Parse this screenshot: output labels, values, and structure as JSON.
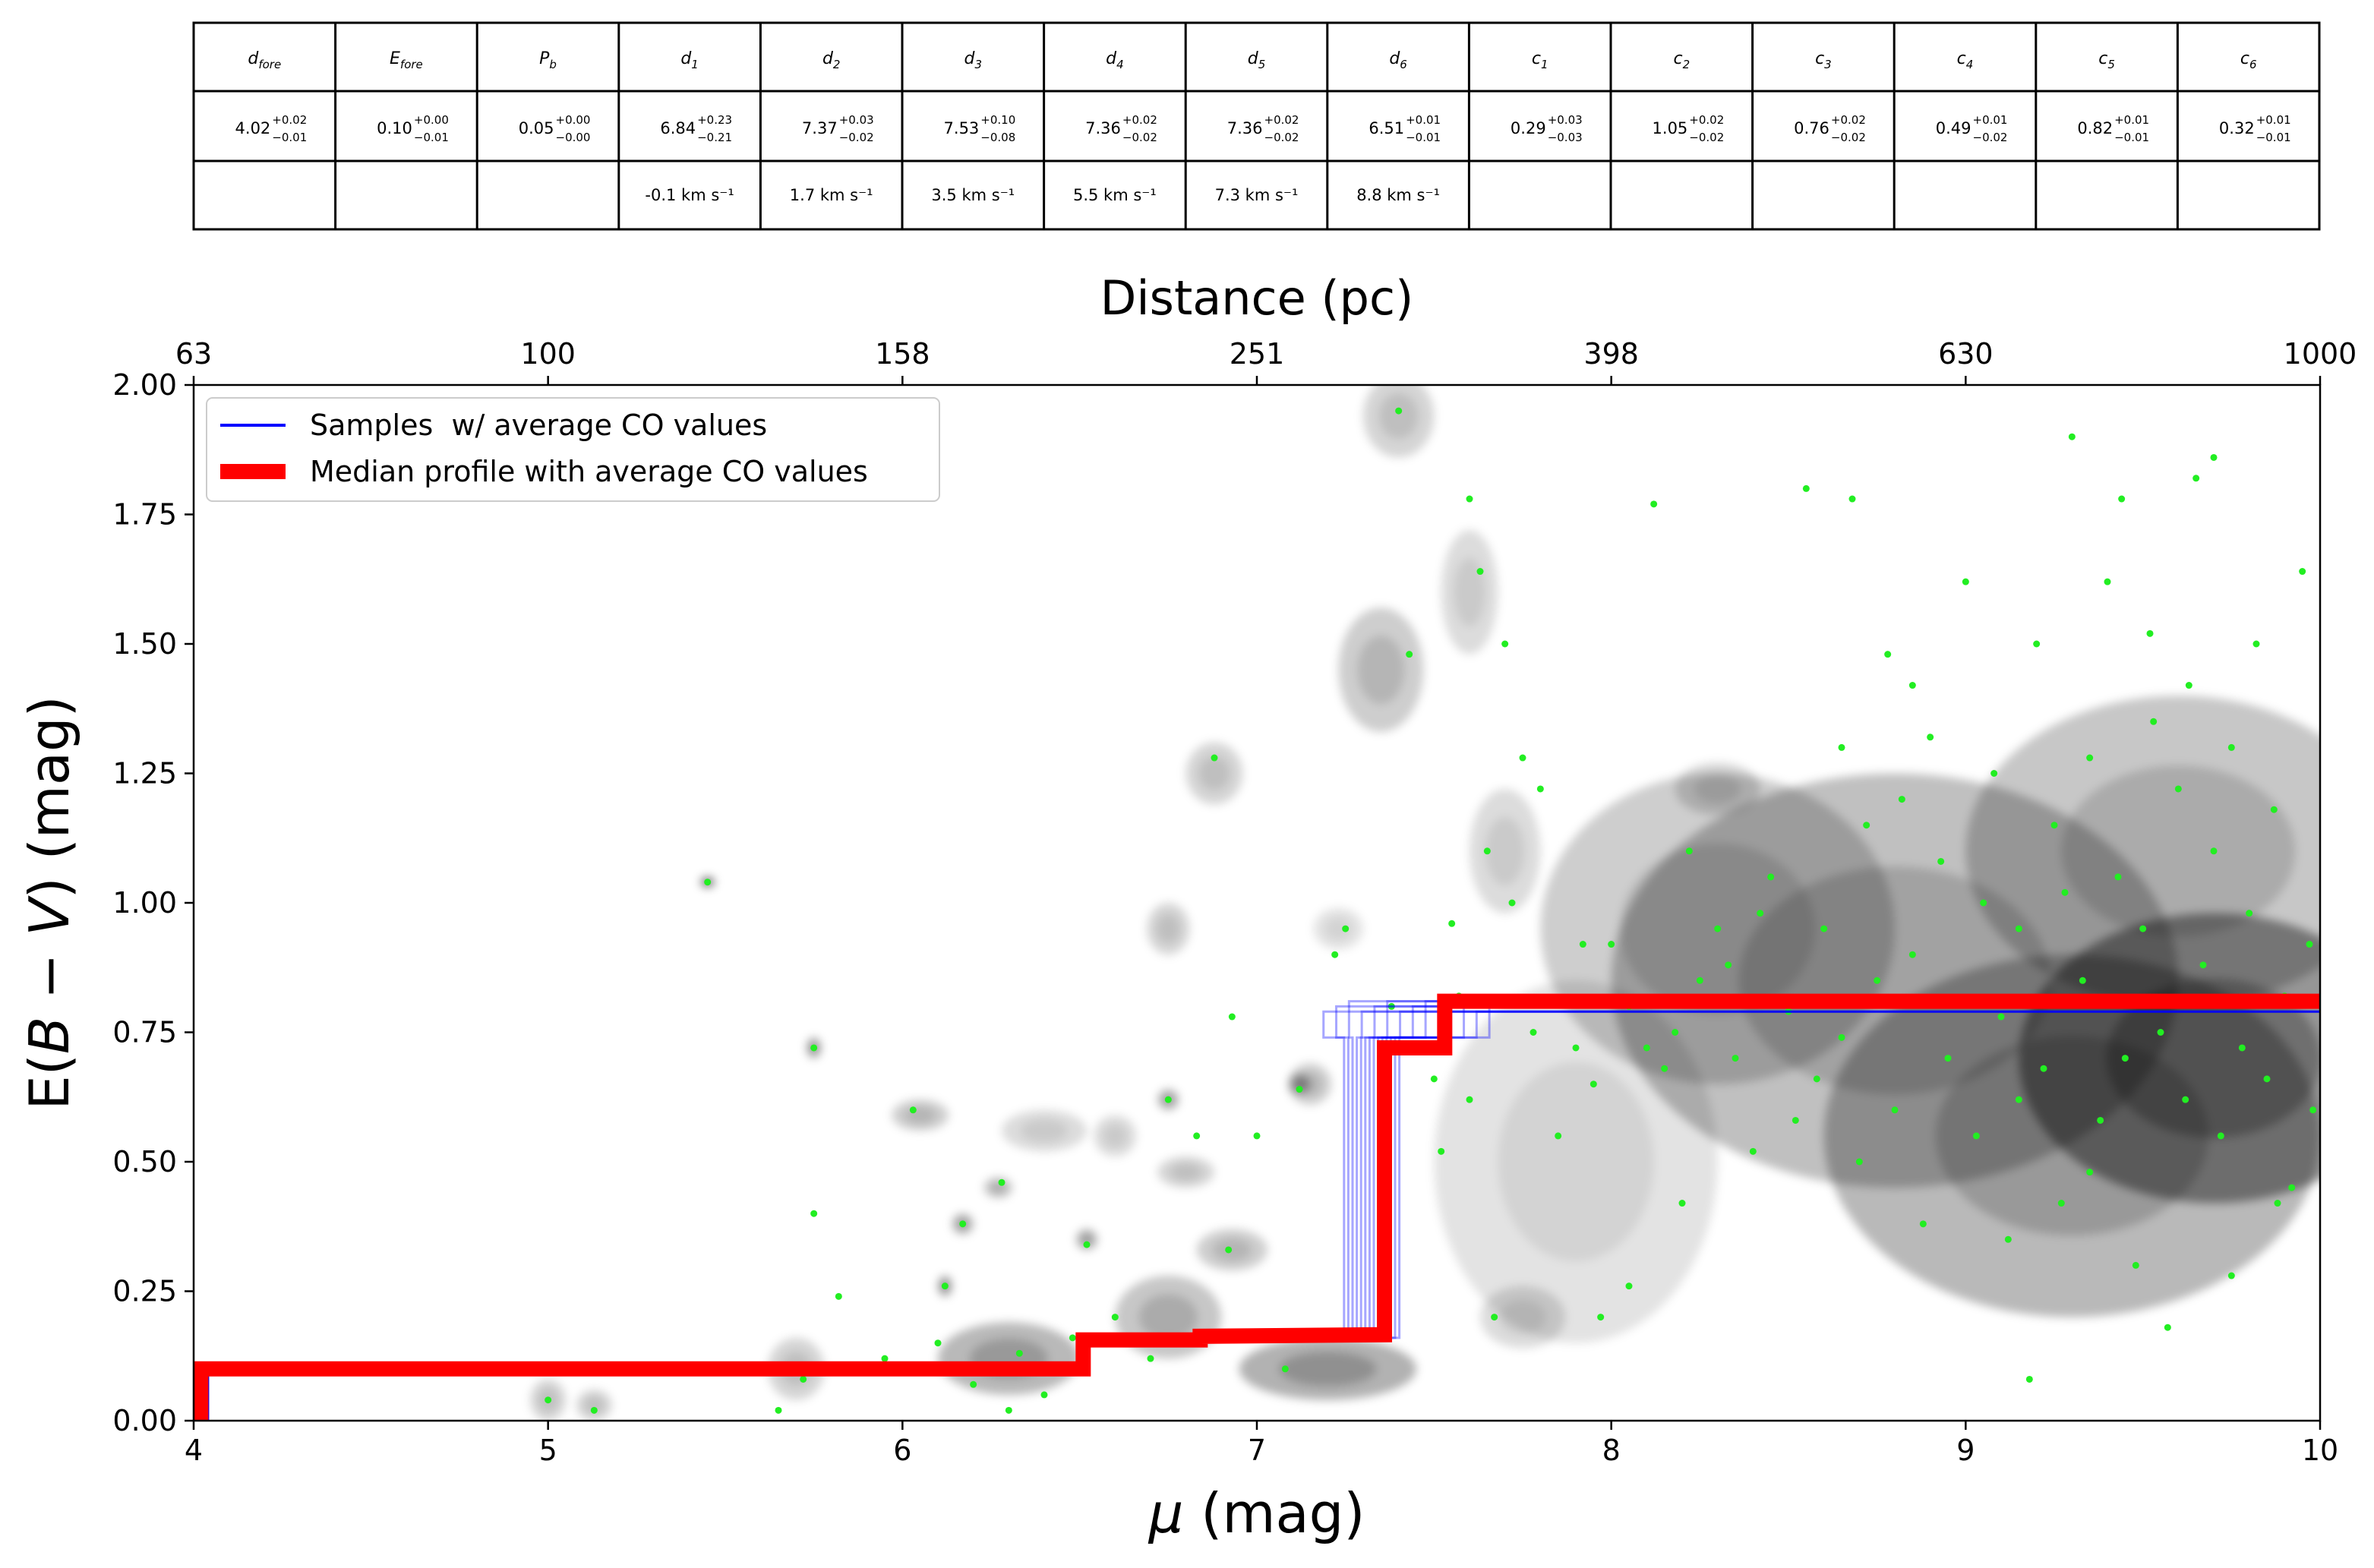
{
  "table": {
    "headers": [
      "d_fore",
      "E_fore",
      "P_b",
      "d_1",
      "d_2",
      "d_3",
      "d_4",
      "d_5",
      "d_6",
      "c_1",
      "c_2",
      "c_3",
      "c_4",
      "c_5",
      "c_6"
    ],
    "header_cells": [
      {
        "base": "d",
        "sub": "fore"
      },
      {
        "base": "E",
        "sub": "fore"
      },
      {
        "base": "P",
        "sub": "b"
      },
      {
        "base": "d",
        "sub": "1"
      },
      {
        "base": "d",
        "sub": "2"
      },
      {
        "base": "d",
        "sub": "3"
      },
      {
        "base": "d",
        "sub": "4"
      },
      {
        "base": "d",
        "sub": "5"
      },
      {
        "base": "d",
        "sub": "6"
      },
      {
        "base": "c",
        "sub": "1"
      },
      {
        "base": "c",
        "sub": "2"
      },
      {
        "base": "c",
        "sub": "3"
      },
      {
        "base": "c",
        "sub": "4"
      },
      {
        "base": "c",
        "sub": "5"
      },
      {
        "base": "c",
        "sub": "6"
      }
    ],
    "values": [
      {
        "v": "4.02",
        "plus": "+0.02",
        "minus": "−0.01"
      },
      {
        "v": "0.10",
        "plus": "+0.00",
        "minus": "−0.01"
      },
      {
        "v": "0.05",
        "plus": "+0.00",
        "minus": "−0.00"
      },
      {
        "v": "6.84",
        "plus": "+0.23",
        "minus": "−0.21"
      },
      {
        "v": "7.37",
        "plus": "+0.03",
        "minus": "−0.02"
      },
      {
        "v": "7.53",
        "plus": "+0.10",
        "minus": "−0.08"
      },
      {
        "v": "7.36",
        "plus": "+0.02",
        "minus": "−0.02"
      },
      {
        "v": "7.36",
        "plus": "+0.02",
        "minus": "−0.02"
      },
      {
        "v": "6.51",
        "plus": "+0.01",
        "minus": "−0.01"
      },
      {
        "v": "0.29",
        "plus": "+0.03",
        "minus": "−0.03"
      },
      {
        "v": "1.05",
        "plus": "+0.02",
        "minus": "−0.02"
      },
      {
        "v": "0.76",
        "plus": "+0.02",
        "minus": "−0.02"
      },
      {
        "v": "0.49",
        "plus": "+0.01",
        "minus": "−0.02"
      },
      {
        "v": "0.82",
        "plus": "+0.01",
        "minus": "−0.01"
      },
      {
        "v": "0.32",
        "plus": "+0.01",
        "minus": "−0.01"
      }
    ],
    "velocities": [
      "",
      "",
      "",
      "-0.1 km s⁻¹",
      "1.7 km s⁻¹",
      "3.5 km s⁻¹",
      "5.5 km s⁻¹",
      "7.3 km s⁻¹",
      "8.8 km s⁻¹",
      "",
      "",
      "",
      "",
      "",
      ""
    ]
  },
  "chart_data": {
    "type": "line",
    "xlabel": "μ (mag)",
    "ylabel": "E(B − V) (mag)",
    "top_axis_label": "Distance (pc)",
    "xlim": [
      4,
      10
    ],
    "ylim": [
      0,
      2
    ],
    "x_ticks": [
      4,
      5,
      6,
      7,
      8,
      9,
      10
    ],
    "y_ticks": [
      "0.00",
      "0.25",
      "0.50",
      "0.75",
      "1.00",
      "1.25",
      "1.50",
      "1.75",
      "2.00"
    ],
    "top_ticks": [
      {
        "mu": 4,
        "label": "63"
      },
      {
        "mu": 5,
        "label": "100"
      },
      {
        "mu": 6,
        "label": "158"
      },
      {
        "mu": 7,
        "label": "251"
      },
      {
        "mu": 8,
        "label": "398"
      },
      {
        "mu": 9,
        "label": "630"
      },
      {
        "mu": 10,
        "label": "1000"
      }
    ],
    "legend": {
      "placement": "upper-left",
      "entries": [
        {
          "label": "Samples  w/ average CO values",
          "color": "#0000ff"
        },
        {
          "label": "Median profile with average CO values",
          "color": "#ff0000"
        }
      ]
    },
    "colors": {
      "median": "#ff0000",
      "samples": "#0000ff",
      "stars": "#22ee22",
      "density": "grayscale"
    },
    "series": [
      {
        "name": "Median profile with average CO values",
        "x": [
          4.0,
          4.02,
          4.02,
          6.51,
          6.51,
          6.84,
          6.84,
          7.36,
          7.36,
          7.53,
          7.53,
          10.0
        ],
        "y": [
          0.0,
          0.0,
          0.1,
          0.1,
          0.156,
          0.156,
          0.163,
          0.166,
          0.72,
          0.72,
          0.81,
          0.81
        ]
      },
      {
        "name": "Samples  w/ average CO values",
        "note_visible": false,
        "x": [
          4.04,
          4.04,
          6.5,
          6.5,
          7.33,
          7.33,
          7.44,
          7.44,
          10.0
        ],
        "y": [
          0.0,
          0.1,
          0.1,
          0.16,
          0.16,
          0.74,
          0.74,
          0.8,
          0.8
        ]
      }
    ],
    "density_blobs": [
      {
        "mu": 9.7,
        "E": 0.7,
        "s_mu": 0.55,
        "s_E": 0.28,
        "a": 0.75
      },
      {
        "mu": 9.3,
        "E": 0.55,
        "s_mu": 0.7,
        "s_E": 0.35,
        "a": 0.5
      },
      {
        "mu": 8.8,
        "E": 0.85,
        "s_mu": 0.8,
        "s_E": 0.4,
        "a": 0.45
      },
      {
        "mu": 9.6,
        "E": 1.1,
        "s_mu": 0.6,
        "s_E": 0.3,
        "a": 0.4
      },
      {
        "mu": 8.3,
        "E": 0.95,
        "s_mu": 0.5,
        "s_E": 0.3,
        "a": 0.35
      },
      {
        "mu": 7.9,
        "E": 0.5,
        "s_mu": 0.4,
        "s_E": 0.35,
        "a": 0.2
      },
      {
        "mu": 7.2,
        "E": 0.1,
        "s_mu": 0.25,
        "s_E": 0.06,
        "a": 0.55
      },
      {
        "mu": 6.3,
        "E": 0.12,
        "s_mu": 0.2,
        "s_E": 0.07,
        "a": 0.5
      },
      {
        "mu": 6.75,
        "E": 0.2,
        "s_mu": 0.15,
        "s_E": 0.08,
        "a": 0.4
      },
      {
        "mu": 5.7,
        "E": 0.1,
        "s_mu": 0.08,
        "s_E": 0.06,
        "a": 0.3
      },
      {
        "mu": 5.0,
        "E": 0.04,
        "s_mu": 0.05,
        "s_E": 0.04,
        "a": 0.3
      },
      {
        "mu": 5.13,
        "E": 0.03,
        "s_mu": 0.05,
        "s_E": 0.03,
        "a": 0.3
      },
      {
        "mu": 6.05,
        "E": 0.59,
        "s_mu": 0.08,
        "s_E": 0.03,
        "a": 0.35
      },
      {
        "mu": 6.4,
        "E": 0.56,
        "s_mu": 0.12,
        "s_E": 0.04,
        "a": 0.25
      },
      {
        "mu": 6.8,
        "E": 0.48,
        "s_mu": 0.08,
        "s_E": 0.03,
        "a": 0.3
      },
      {
        "mu": 6.93,
        "E": 0.33,
        "s_mu": 0.1,
        "s_E": 0.04,
        "a": 0.35
      },
      {
        "mu": 6.6,
        "E": 0.55,
        "s_mu": 0.06,
        "s_E": 0.04,
        "a": 0.25
      },
      {
        "mu": 6.75,
        "E": 0.95,
        "s_mu": 0.06,
        "s_E": 0.05,
        "a": 0.3
      },
      {
        "mu": 6.88,
        "E": 1.25,
        "s_mu": 0.08,
        "s_E": 0.06,
        "a": 0.3
      },
      {
        "mu": 7.23,
        "E": 0.95,
        "s_mu": 0.07,
        "s_E": 0.04,
        "a": 0.2
      },
      {
        "mu": 7.15,
        "E": 0.65,
        "s_mu": 0.06,
        "s_E": 0.04,
        "a": 0.35
      },
      {
        "mu": 7.35,
        "E": 1.45,
        "s_mu": 0.12,
        "s_E": 0.12,
        "a": 0.35
      },
      {
        "mu": 7.4,
        "E": 1.94,
        "s_mu": 0.1,
        "s_E": 0.08,
        "a": 0.3
      },
      {
        "mu": 7.6,
        "E": 1.6,
        "s_mu": 0.08,
        "s_E": 0.12,
        "a": 0.25
      },
      {
        "mu": 7.7,
        "E": 1.1,
        "s_mu": 0.1,
        "s_E": 0.12,
        "a": 0.25
      },
      {
        "mu": 8.3,
        "E": 1.22,
        "s_mu": 0.12,
        "s_E": 0.05,
        "a": 0.3
      },
      {
        "mu": 7.75,
        "E": 0.2,
        "s_mu": 0.12,
        "s_E": 0.06,
        "a": 0.25
      },
      {
        "mu": 5.45,
        "E": 1.04,
        "s_mu": 0.02,
        "s_E": 0.01,
        "a": 0.9
      },
      {
        "mu": 5.75,
        "E": 0.72,
        "s_mu": 0.02,
        "s_E": 0.02,
        "a": 0.6
      },
      {
        "mu": 6.12,
        "E": 0.26,
        "s_mu": 0.02,
        "s_E": 0.02,
        "a": 0.6
      },
      {
        "mu": 6.17,
        "E": 0.38,
        "s_mu": 0.03,
        "s_E": 0.02,
        "a": 0.5
      },
      {
        "mu": 6.27,
        "E": 0.45,
        "s_mu": 0.04,
        "s_E": 0.02,
        "a": 0.4
      },
      {
        "mu": 6.52,
        "E": 0.35,
        "s_mu": 0.03,
        "s_E": 0.02,
        "a": 0.5
      },
      {
        "mu": 6.75,
        "E": 0.62,
        "s_mu": 0.03,
        "s_E": 0.02,
        "a": 0.5
      },
      {
        "mu": 7.12,
        "E": 0.65,
        "s_mu": 0.03,
        "s_E": 0.02,
        "a": 0.5
      }
    ],
    "stars": [
      [
        5.45,
        1.04
      ],
      [
        5.75,
        0.72
      ],
      [
        5.75,
        0.4
      ],
      [
        6.12,
        0.26
      ],
      [
        6.17,
        0.38
      ],
      [
        6.28,
        0.46
      ],
      [
        6.52,
        0.34
      ],
      [
        6.75,
        0.62
      ],
      [
        6.03,
        0.6
      ],
      [
        5.0,
        0.04
      ],
      [
        5.13,
        0.02
      ],
      [
        5.65,
        0.02
      ],
      [
        5.72,
        0.08
      ],
      [
        5.82,
        0.24
      ],
      [
        5.95,
        0.12
      ],
      [
        6.1,
        0.15
      ],
      [
        6.2,
        0.07
      ],
      [
        6.3,
        0.02
      ],
      [
        6.33,
        0.13
      ],
      [
        6.4,
        0.05
      ],
      [
        6.48,
        0.16
      ],
      [
        6.6,
        0.2
      ],
      [
        6.7,
        0.12
      ],
      [
        6.83,
        0.55
      ],
      [
        6.93,
        0.78
      ],
      [
        6.88,
        1.28
      ],
      [
        6.92,
        0.33
      ],
      [
        7.0,
        0.55
      ],
      [
        7.08,
        0.1
      ],
      [
        7.12,
        0.64
      ],
      [
        7.22,
        0.9
      ],
      [
        7.25,
        0.95
      ],
      [
        7.38,
        0.8
      ],
      [
        7.4,
        1.95
      ],
      [
        7.43,
        1.48
      ],
      [
        7.5,
        0.66
      ],
      [
        7.52,
        0.52
      ],
      [
        7.55,
        0.96
      ],
      [
        7.57,
        0.82
      ],
      [
        7.6,
        1.78
      ],
      [
        7.63,
        1.64
      ],
      [
        7.65,
        1.1
      ],
      [
        7.67,
        0.2
      ],
      [
        7.7,
        1.5
      ],
      [
        7.72,
        1.0
      ],
      [
        7.75,
        1.28
      ],
      [
        7.78,
        0.75
      ],
      [
        7.8,
        1.22
      ],
      [
        7.85,
        0.55
      ],
      [
        7.9,
        0.72
      ],
      [
        7.95,
        0.65
      ],
      [
        8.0,
        0.92
      ],
      [
        8.05,
        0.8
      ],
      [
        8.1,
        0.72
      ],
      [
        8.12,
        1.77
      ],
      [
        8.18,
        0.75
      ],
      [
        8.2,
        0.42
      ],
      [
        8.25,
        0.85
      ],
      [
        8.3,
        0.95
      ],
      [
        8.35,
        0.7
      ],
      [
        8.4,
        0.52
      ],
      [
        8.45,
        1.05
      ],
      [
        8.5,
        0.79
      ],
      [
        8.55,
        1.8
      ],
      [
        8.58,
        0.66
      ],
      [
        8.6,
        0.95
      ],
      [
        8.65,
        0.74
      ],
      [
        8.68,
        1.78
      ],
      [
        8.7,
        0.5
      ],
      [
        8.72,
        1.15
      ],
      [
        8.75,
        0.85
      ],
      [
        8.78,
        1.48
      ],
      [
        8.8,
        0.6
      ],
      [
        8.82,
        1.2
      ],
      [
        8.85,
        0.9
      ],
      [
        8.88,
        0.38
      ],
      [
        8.9,
        1.32
      ],
      [
        8.95,
        0.7
      ],
      [
        9.0,
        1.62
      ],
      [
        9.03,
        0.55
      ],
      [
        9.05,
        1.0
      ],
      [
        9.08,
        1.25
      ],
      [
        9.1,
        0.78
      ],
      [
        9.12,
        0.35
      ],
      [
        9.15,
        0.95
      ],
      [
        9.18,
        0.08
      ],
      [
        9.2,
        1.5
      ],
      [
        9.22,
        0.68
      ],
      [
        9.25,
        1.15
      ],
      [
        9.27,
        0.42
      ],
      [
        9.3,
        1.9
      ],
      [
        9.33,
        0.85
      ],
      [
        9.35,
        1.28
      ],
      [
        9.38,
        0.58
      ],
      [
        9.4,
        1.62
      ],
      [
        9.43,
        1.05
      ],
      [
        9.45,
        0.7
      ],
      [
        9.48,
        0.3
      ],
      [
        9.5,
        0.95
      ],
      [
        9.53,
        1.35
      ],
      [
        9.55,
        0.75
      ],
      [
        9.57,
        0.18
      ],
      [
        9.6,
        1.22
      ],
      [
        9.62,
        0.62
      ],
      [
        9.63,
        1.42
      ],
      [
        9.65,
        1.82
      ],
      [
        9.67,
        0.88
      ],
      [
        9.7,
        1.1
      ],
      [
        9.72,
        0.55
      ],
      [
        9.75,
        1.3
      ],
      [
        9.78,
        0.72
      ],
      [
        9.8,
        0.98
      ],
      [
        9.82,
        1.5
      ],
      [
        9.85,
        0.66
      ],
      [
        9.87,
        1.18
      ],
      [
        9.9,
        0.82
      ],
      [
        9.92,
        0.45
      ],
      [
        9.95,
        1.64
      ],
      [
        9.97,
        0.92
      ],
      [
        9.98,
        0.6
      ],
      [
        9.52,
        1.52
      ],
      [
        9.44,
        1.78
      ],
      [
        9.7,
        1.86
      ],
      [
        9.75,
        0.28
      ],
      [
        9.88,
        0.42
      ],
      [
        9.35,
        0.48
      ],
      [
        9.15,
        0.62
      ],
      [
        8.93,
        1.08
      ],
      [
        8.65,
        1.3
      ],
      [
        8.42,
        0.98
      ],
      [
        8.33,
        0.88
      ],
      [
        8.15,
        0.68
      ],
      [
        7.97,
        0.2
      ],
      [
        8.05,
        0.26
      ],
      [
        7.6,
        0.62
      ],
      [
        7.92,
        0.92
      ],
      [
        8.22,
        1.1
      ],
      [
        8.52,
        0.58
      ],
      [
        8.85,
        1.42
      ],
      [
        9.28,
        1.02
      ]
    ]
  }
}
